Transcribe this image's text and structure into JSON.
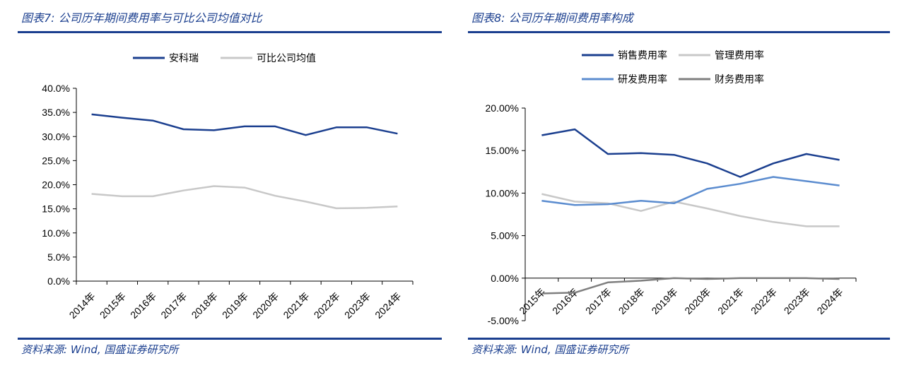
{
  "left": {
    "figure_title": "图表7:  公司历年期间费用率与可比公司均值对比",
    "source": "资料来源:  Wind,  国盛证券研究所",
    "chart_data": {
      "type": "line",
      "categories": [
        "2014年",
        "2015年",
        "2016年",
        "2017年",
        "2018年",
        "2019年",
        "2020年",
        "2021年",
        "2022年",
        "2023年",
        "2024年"
      ],
      "series": [
        {
          "name": "安科瑞",
          "color": "#1b3f8f",
          "values": [
            34.6,
            33.9,
            33.3,
            31.5,
            31.3,
            32.1,
            32.1,
            30.3,
            31.9,
            31.9,
            30.6
          ]
        },
        {
          "name": "可比公司均值",
          "color": "#c8c8c8",
          "values": [
            18.1,
            17.6,
            17.6,
            18.8,
            19.7,
            19.4,
            17.7,
            16.5,
            15.1,
            15.2,
            15.5
          ]
        }
      ],
      "yticks": [
        "0.0%",
        "5.0%",
        "10.0%",
        "15.0%",
        "20.0%",
        "25.0%",
        "30.0%",
        "35.0%",
        "40.0%"
      ],
      "ylim": [
        0,
        40
      ],
      "grid": false,
      "legend": "top"
    }
  },
  "right": {
    "figure_title": "图表8:  公司历年期间费用率构成",
    "source": "资料来源:  Wind,  国盛证券研究所",
    "chart_data": {
      "type": "line",
      "categories": [
        "2015年",
        "2016年",
        "2017年",
        "2018年",
        "2019年",
        "2020年",
        "2021年",
        "2022年",
        "2023年",
        "2024年"
      ],
      "series": [
        {
          "name": "销售费用率",
          "color": "#1b3f8f",
          "values": [
            16.8,
            17.5,
            14.6,
            14.7,
            14.5,
            13.5,
            11.9,
            13.5,
            14.6,
            13.9
          ]
        },
        {
          "name": "管理费用率",
          "color": "#c8c8c8",
          "values": [
            9.9,
            9.0,
            8.8,
            7.9,
            9.0,
            8.2,
            7.3,
            6.6,
            6.1,
            6.1
          ]
        },
        {
          "name": "研发费用率",
          "color": "#5b8ccf",
          "values": [
            9.1,
            8.6,
            8.7,
            9.1,
            8.8,
            10.5,
            11.1,
            11.9,
            11.4,
            10.9
          ]
        },
        {
          "name": "财务费用率",
          "color": "#7f7f7f",
          "values": [
            -1.8,
            -1.7,
            -0.5,
            -0.3,
            0.0,
            -0.1,
            0.0,
            0.0,
            0.0,
            -0.1
          ]
        }
      ],
      "yticks": [
        "-5.00%",
        "0.00%",
        "5.00%",
        "10.00%",
        "15.00%",
        "20.00%"
      ],
      "ylim": [
        -5,
        20
      ],
      "grid": false,
      "legend": "top"
    }
  }
}
